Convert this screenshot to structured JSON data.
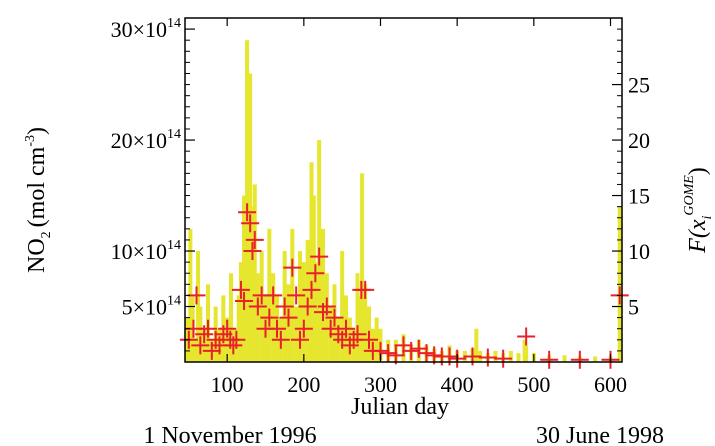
{
  "chart_data": {
    "type": "bar",
    "xlabel": "Julian day",
    "xlim": [
      45,
      615
    ],
    "x_ticks": [
      100,
      200,
      300,
      400,
      500,
      600
    ],
    "date_labels": {
      "start": "1 November 1996",
      "end": "30 June 1998"
    },
    "left_axis": {
      "label_main": "NO",
      "label_sub": "2",
      "label_unit": "(mol cm",
      "label_unit_exp": "-3",
      "label_close": ")",
      "ylim": [
        0,
        31
      ],
      "tick_scale_text": "×10",
      "tick_scale_exp": "14",
      "ticks": [
        {
          "value": 5,
          "label": "5"
        },
        {
          "value": 10,
          "label": "10"
        },
        {
          "value": 20,
          "label": "20"
        },
        {
          "value": 30,
          "label": "30"
        }
      ]
    },
    "right_axis": {
      "label": "F(x",
      "label_sub": "i",
      "label_sup": "GOME",
      "label_close": ")",
      "ylim": [
        0,
        31
      ],
      "ticks": [
        5,
        10,
        15,
        20,
        25
      ]
    },
    "series": [
      {
        "style": "yellow-bars",
        "color": "#e6e62e",
        "x": [
          48,
          52,
          55,
          58,
          62,
          65,
          70,
          75,
          80,
          85,
          90,
          95,
          100,
          105,
          110,
          115,
          118,
          122,
          126,
          128,
          130,
          133,
          136,
          140,
          145,
          150,
          155,
          160,
          165,
          170,
          175,
          180,
          185,
          190,
          195,
          200,
          205,
          210,
          213,
          216,
          220,
          225,
          230,
          235,
          240,
          245,
          250,
          255,
          260,
          265,
          270,
          273,
          276,
          280,
          285,
          290,
          295,
          300,
          310,
          320,
          330,
          340,
          350,
          360,
          370,
          380,
          390,
          400,
          410,
          420,
          425,
          430,
          440,
          450,
          460,
          470,
          480,
          488,
          490,
          500,
          520,
          540,
          560,
          580,
          600,
          612
        ],
        "values": [
          4,
          12,
          6,
          2,
          10,
          5,
          3,
          7,
          2,
          5,
          3,
          6,
          4,
          8,
          3,
          6,
          9,
          15,
          29,
          20,
          26,
          14,
          16,
          8,
          10,
          6,
          12,
          8,
          6,
          4,
          10,
          7,
          12,
          5,
          10,
          9,
          11,
          18,
          15,
          9,
          20,
          12,
          8,
          5,
          7,
          4,
          10,
          6,
          4,
          3,
          8,
          6,
          17,
          7,
          5,
          3,
          4,
          3,
          2,
          2,
          2.5,
          1.5,
          2,
          1.5,
          1.2,
          1,
          1.5,
          1,
          1,
          1.2,
          3,
          1,
          0.8,
          1,
          0.8,
          1,
          0.8,
          2,
          1.5,
          0.8,
          0.6,
          0.6,
          0.5,
          0.5,
          0.5,
          14
        ]
      },
      {
        "style": "red-crosses",
        "color": "#e8202a",
        "x": [
          50,
          56,
          60,
          65,
          70,
          75,
          80,
          85,
          90,
          95,
          100,
          104,
          108,
          112,
          118,
          122,
          126,
          130,
          133,
          136,
          140,
          145,
          150,
          155,
          160,
          165,
          170,
          175,
          180,
          185,
          190,
          195,
          200,
          205,
          210,
          215,
          220,
          225,
          230,
          235,
          240,
          245,
          250,
          255,
          260,
          265,
          270,
          275,
          280,
          285,
          290,
          300,
          310,
          320,
          330,
          340,
          350,
          360,
          370,
          380,
          390,
          400,
          420,
          440,
          460,
          490,
          520,
          560,
          600,
          612
        ],
        "values": [
          2,
          3,
          6,
          1.5,
          2.5,
          3,
          1,
          2,
          1.5,
          2.5,
          3,
          2,
          1.5,
          2,
          6.5,
          5.5,
          13.5,
          12.5,
          10,
          11,
          5,
          6,
          3,
          4,
          6,
          3,
          2,
          5,
          4,
          8.5,
          6,
          2,
          3,
          5,
          6.5,
          8,
          9.5,
          4.5,
          5,
          3,
          4,
          2.5,
          2,
          3,
          1.5,
          2,
          2.5,
          6.5,
          6.5,
          2,
          1,
          1,
          0.8,
          0.6,
          1.5,
          1,
          1.2,
          0.8,
          0.6,
          0.5,
          0.5,
          0.3,
          0.5,
          0.4,
          0.3,
          2.3,
          0.2,
          0.2,
          0.2,
          6
        ]
      }
    ]
  }
}
